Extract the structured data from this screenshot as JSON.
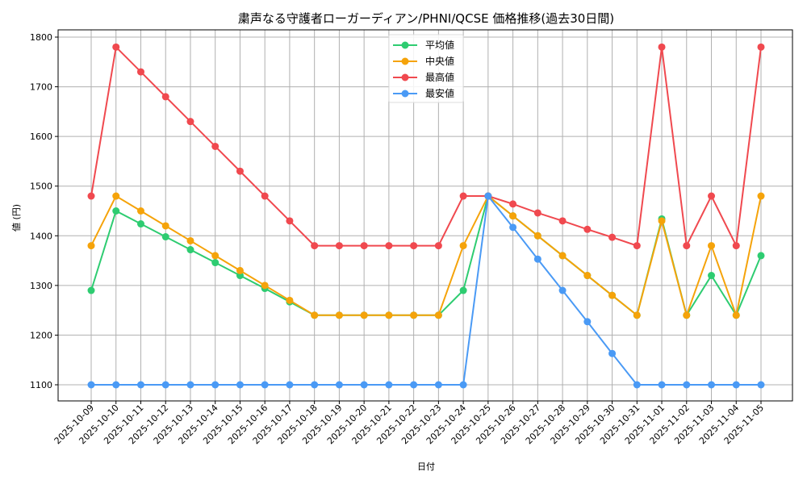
{
  "chart_data": {
    "type": "line",
    "title": "粛声なる守護者ローガーディアン/PHNI/QCSE 価格推移(過去30日間)",
    "xlabel": "日付",
    "ylabel": "値 (円)",
    "ylim": [
      1065,
      1820
    ],
    "yticks": [
      1100,
      1200,
      1300,
      1400,
      1500,
      1600,
      1700,
      1800
    ],
    "grid": true,
    "legend_position": "upper center",
    "x": [
      "2025-10-09",
      "2025-10-10",
      "2025-10-11",
      "2025-10-12",
      "2025-10-13",
      "2025-10-14",
      "2025-10-15",
      "2025-10-16",
      "2025-10-17",
      "2025-10-18",
      "2025-10-19",
      "2025-10-20",
      "2025-10-21",
      "2025-10-22",
      "2025-10-23",
      "2025-10-24",
      "2025-10-25",
      "2025-10-26",
      "2025-10-27",
      "2025-10-28",
      "2025-10-29",
      "2025-10-30",
      "2025-10-31",
      "2025-11-01",
      "2025-11-02",
      "2025-11-03",
      "2025-11-04",
      "2025-11-05"
    ],
    "series": [
      {
        "name": "平均値",
        "color": "#2ecc71",
        "values": [
          1290,
          1450,
          1424,
          1398,
          1372,
          1346,
          1320,
          1294,
          1267,
          1240,
          1240,
          1240,
          1240,
          1240,
          1240,
          1290,
          1480,
          1440,
          1400,
          1360,
          1320,
          1280,
          1240,
          1434,
          1240,
          1320,
          1240,
          1360
        ]
      },
      {
        "name": "中央値",
        "color": "#f5a30a",
        "values": [
          1380,
          1480,
          1450,
          1420,
          1390,
          1360,
          1330,
          1300,
          1270,
          1240,
          1240,
          1240,
          1240,
          1240,
          1240,
          1380,
          1480,
          1440,
          1400,
          1360,
          1320,
          1280,
          1240,
          1430,
          1240,
          1380,
          1240,
          1480
        ]
      },
      {
        "name": "最高値",
        "color": "#f0494f",
        "values": [
          1480,
          1780,
          1730,
          1680,
          1630,
          1580,
          1530,
          1480,
          1430,
          1380,
          1380,
          1380,
          1380,
          1380,
          1380,
          1480,
          1480,
          1464,
          1446,
          1430,
          1413,
          1397,
          1380,
          1780,
          1380,
          1480,
          1380,
          1780
        ]
      },
      {
        "name": "最安値",
        "color": "#4a9af5",
        "values": [
          1100,
          1100,
          1100,
          1100,
          1100,
          1100,
          1100,
          1100,
          1100,
          1100,
          1100,
          1100,
          1100,
          1100,
          1100,
          1100,
          1480,
          1417,
          1353,
          1290,
          1227,
          1163,
          1100,
          1100,
          1100,
          1100,
          1100,
          1100
        ]
      }
    ]
  }
}
